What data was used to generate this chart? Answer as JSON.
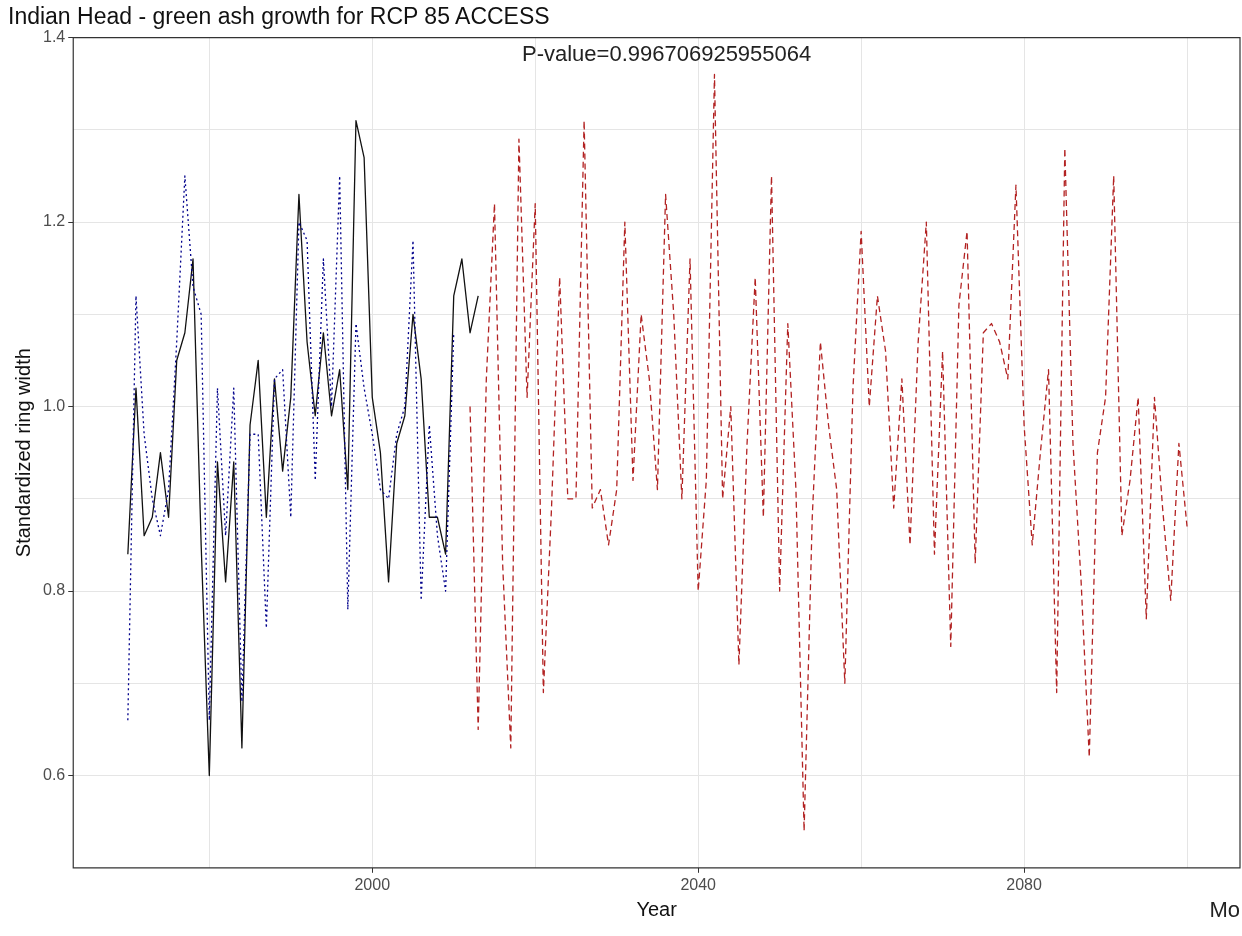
{
  "chart_data": {
    "type": "line",
    "title": "Indian Head - green ash growth for RCP 85 ACCESS",
    "xlabel": "Year",
    "ylabel": "Standardized ring width",
    "annotations": [
      "P-value=0.996706925955064",
      "Mo"
    ],
    "xlim": [
      1963.3,
      2106.5
    ],
    "xticks": [
      {
        "value": 1980,
        "label": null
      },
      2000,
      {
        "value": 2020,
        "label": null
      },
      2040,
      {
        "value": 2060,
        "label": null
      },
      2080,
      {
        "value": 2100,
        "label": null
      }
    ],
    "ylim": [
      0.5,
      1.4
    ],
    "yticks": [
      0.6,
      {
        "value": 0.7,
        "label": null
      },
      0.8,
      {
        "value": 0.9,
        "label": null
      },
      {
        "value": 1,
        "label": "1.0"
      },
      {
        "value": 1.1,
        "label": null
      },
      1.2,
      {
        "value": 1.3,
        "label": null
      },
      1.4
    ],
    "grid": true,
    "legend": false,
    "marker": "none",
    "series": [
      {
        "color": "#00008b",
        "line_style": "dotted",
        "x": [
          1970,
          1971,
          1972,
          1973,
          1974,
          1975,
          1976,
          1977,
          1978,
          1979,
          1980,
          1981,
          1982,
          1983,
          1984,
          1985,
          1986,
          1987,
          1988,
          1989,
          1990,
          1991,
          1992,
          1993,
          1994,
          1995,
          1996,
          1997,
          1998,
          1999,
          2000,
          2001,
          2002,
          2003,
          2004,
          2005,
          2006,
          2007,
          2008,
          2009,
          2010
        ],
        "values": [
          0.66,
          1.12,
          0.97,
          0.9,
          0.86,
          0.91,
          1.07,
          1.25,
          1.13,
          1.1,
          0.66,
          1.02,
          0.86,
          1.02,
          0.68,
          0.97,
          0.97,
          0.76,
          1.03,
          1.04,
          0.88,
          1.2,
          1.18,
          0.92,
          1.16,
          1.0,
          1.25,
          0.78,
          1.09,
          1.02,
          0.97,
          0.91,
          0.9,
          0.97,
          1.0,
          1.18,
          0.79,
          0.98,
          0.86,
          0.8,
          1.08
        ]
      },
      {
        "color": "#111111",
        "line_style": "solid",
        "x": [
          1970,
          1971,
          1972,
          1973,
          1974,
          1975,
          1976,
          1977,
          1978,
          1979,
          1980,
          1981,
          1982,
          1983,
          1984,
          1985,
          1986,
          1987,
          1988,
          1989,
          1990,
          1991,
          1992,
          1993,
          1994,
          1995,
          1996,
          1997,
          1998,
          1999,
          2000,
          2001,
          2002,
          2003,
          2004,
          2005,
          2006,
          2007,
          2008,
          2009,
          2010,
          2011,
          2012,
          2013
        ],
        "values": [
          0.84,
          1.02,
          0.86,
          0.88,
          0.95,
          0.88,
          1.05,
          1.08,
          1.16,
          0.85,
          0.6,
          0.94,
          0.81,
          0.94,
          0.63,
          0.98,
          1.05,
          0.88,
          1.03,
          0.93,
          1.01,
          1.23,
          1.07,
          0.99,
          1.08,
          0.99,
          1.04,
          0.91,
          1.31,
          1.27,
          1.01,
          0.95,
          0.81,
          0.96,
          0.99,
          1.1,
          1.03,
          0.88,
          0.88,
          0.84,
          1.12,
          1.16,
          1.08,
          1.12
        ]
      },
      {
        "color": "#b22222",
        "line_style": "dashed",
        "x": [
          2012,
          2013,
          2014,
          2015,
          2016,
          2017,
          2018,
          2019,
          2020,
          2021,
          2022,
          2023,
          2024,
          2025,
          2026,
          2027,
          2028,
          2029,
          2030,
          2031,
          2032,
          2033,
          2034,
          2035,
          2036,
          2037,
          2038,
          2039,
          2040,
          2041,
          2042,
          2043,
          2044,
          2045,
          2046,
          2047,
          2048,
          2049,
          2050,
          2051,
          2052,
          2053,
          2054,
          2055,
          2056,
          2057,
          2058,
          2059,
          2060,
          2061,
          2062,
          2063,
          2064,
          2065,
          2066,
          2067,
          2068,
          2069,
          2070,
          2071,
          2072,
          2073,
          2074,
          2075,
          2076,
          2077,
          2078,
          2079,
          2080,
          2081,
          2082,
          2083,
          2084,
          2085,
          2086,
          2087,
          2088,
          2089,
          2090,
          2091,
          2092,
          2093,
          2094,
          2095,
          2096,
          2097,
          2098,
          2099,
          2100
        ],
        "values": [
          1.0,
          0.65,
          1.03,
          1.22,
          0.83,
          0.63,
          1.29,
          1.01,
          1.22,
          0.69,
          0.89,
          1.14,
          0.9,
          0.9,
          1.31,
          0.89,
          0.91,
          0.85,
          0.91,
          1.2,
          0.92,
          1.1,
          1.03,
          0.91,
          1.23,
          1.1,
          0.9,
          1.16,
          0.8,
          0.92,
          1.36,
          0.9,
          1.0,
          0.72,
          0.96,
          1.14,
          0.88,
          1.25,
          0.8,
          1.09,
          0.91,
          0.54,
          0.88,
          1.07,
          0.98,
          0.91,
          0.7,
          1.02,
          1.19,
          1.0,
          1.12,
          1.06,
          0.89,
          1.03,
          0.85,
          1.07,
          1.2,
          0.84,
          1.06,
          0.74,
          1.11,
          1.19,
          0.83,
          1.08,
          1.09,
          1.07,
          1.03,
          1.24,
          0.98,
          0.85,
          0.95,
          1.04,
          0.69,
          1.28,
          0.96,
          0.81,
          0.62,
          0.95,
          1.01,
          1.25,
          0.86,
          0.92,
          1.01,
          0.77,
          1.01,
          0.89,
          0.79,
          0.96,
          0.87
        ]
      }
    ]
  }
}
